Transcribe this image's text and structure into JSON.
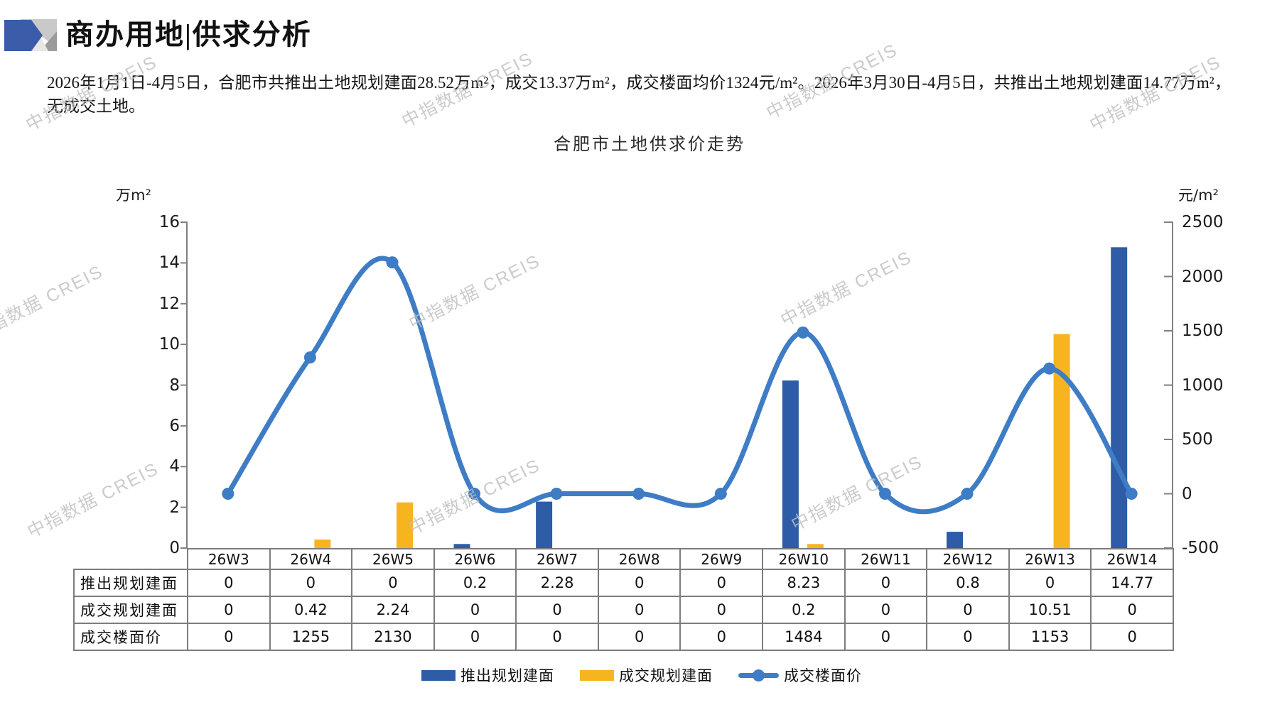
{
  "page": {
    "title": "商办用地|供求分析",
    "summary": "2026年1月1日-4月5日，合肥市共推出土地规划建面28.52万m²，成交13.37万m²，成交楼面均价1324元/m²。2026年3月30日-4月5日，共推出土地规划建面14.77万m²，无成交土地。",
    "watermark_text": "中指数据 CREIS"
  },
  "chart_data": {
    "type": "bar",
    "subtype": "combo bar+smooth-line, dual axis, with data table",
    "title": "合肥市土地供求价走势",
    "categories": [
      "26W3",
      "26W4",
      "26W5",
      "26W6",
      "26W7",
      "26W8",
      "26W9",
      "26W10",
      "26W11",
      "26W12",
      "26W13",
      "26W14"
    ],
    "series": [
      {
        "name": "推出规划建面",
        "type": "bar",
        "axis": "left",
        "color": "#2E5CA6",
        "values": [
          0,
          0,
          0,
          0.2,
          2.28,
          0,
          0,
          8.23,
          0,
          0.8,
          0,
          14.77
        ]
      },
      {
        "name": "成交规划建面",
        "type": "bar",
        "axis": "left",
        "color": "#F6B51E",
        "values": [
          0,
          0.42,
          2.24,
          0,
          0,
          0,
          0,
          0.2,
          0,
          0,
          10.51,
          0
        ]
      },
      {
        "name": "成交楼面价",
        "type": "line",
        "axis": "right",
        "color": "#3E7DC5",
        "values": [
          0,
          1255,
          2130,
          0,
          0,
          0,
          0,
          1484,
          0,
          0,
          1153,
          0
        ]
      }
    ],
    "left_axis": {
      "unit": "万m²",
      "min": 0,
      "max": 16,
      "step": 2,
      "ticks": [
        16,
        14,
        12,
        10,
        8,
        6,
        4,
        2,
        0
      ]
    },
    "right_axis": {
      "unit": "元/m²",
      "min": -500,
      "max": 2500,
      "step": 500,
      "ticks": [
        2500,
        2000,
        1500,
        1000,
        500,
        0,
        -500
      ]
    },
    "grid": false,
    "legend_position": "bottom",
    "data_table_shown": true,
    "axis_color": "#808080"
  }
}
